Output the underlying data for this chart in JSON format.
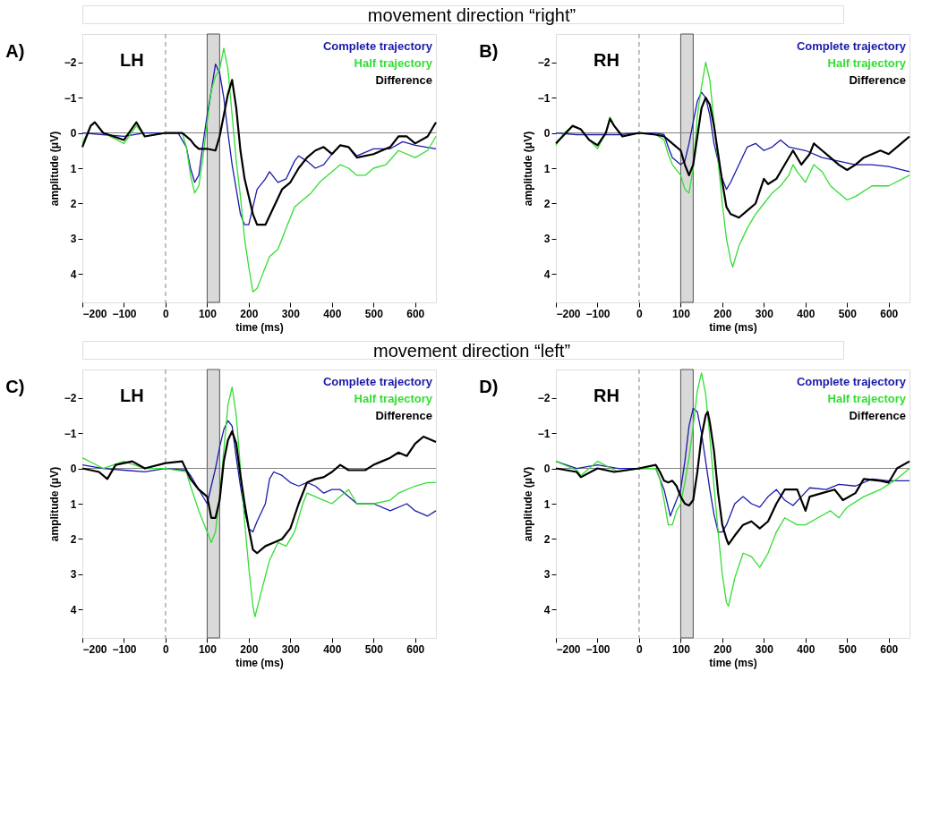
{
  "chart_data": [
    {
      "type": "line",
      "title": "A)",
      "subtitle": "movement direction “right”",
      "annotations": [
        "LH"
      ],
      "xlabel": "time (ms)",
      "ylabel": "amplitude (μV)",
      "xlim": [
        -200,
        650
      ],
      "xticks": [
        -200,
        -100,
        0,
        100,
        200,
        300,
        400,
        500,
        600
      ],
      "ylim": [
        4.8,
        -2.8
      ],
      "yticks": [
        -2,
        -1,
        0,
        1,
        2,
        3,
        4
      ],
      "legend": "top right",
      "grid": false,
      "ref_lines": [
        {
          "axis": "x",
          "value": 0,
          "color": "#808080",
          "line_style": "dashed"
        },
        {
          "axis": "y",
          "value": 0,
          "color": "#808080",
          "line_style": "solid"
        }
      ],
      "bands": [
        {
          "axis": "x",
          "from": 100,
          "to": 130,
          "color": "#d9d9d9"
        }
      ],
      "series": [
        {
          "name": "Complete trajectory",
          "color": "#1a1aaa",
          "x": [
            -200,
            -150,
            -100,
            -50,
            0,
            30,
            50,
            60,
            70,
            80,
            90,
            100,
            110,
            120,
            130,
            140,
            150,
            160,
            170,
            180,
            190,
            200,
            210,
            220,
            240,
            250,
            270,
            290,
            310,
            320,
            340,
            360,
            380,
            400,
            420,
            440,
            460,
            500,
            540,
            570,
            600,
            650
          ],
          "values": [
            0,
            0.05,
            0.1,
            0,
            0,
            0,
            0.4,
            1,
            1.4,
            1.2,
            0.3,
            -0.5,
            -1.2,
            -1.95,
            -1.7,
            -1,
            0,
            0.9,
            1.6,
            2.3,
            2.6,
            2.6,
            2.1,
            1.6,
            1.3,
            1.1,
            1.4,
            1.3,
            0.8,
            0.65,
            0.8,
            1.0,
            0.9,
            0.6,
            0.35,
            0.4,
            0.65,
            0.45,
            0.45,
            0.25,
            0.35,
            0.45
          ]
        },
        {
          "name": "Half trajectory",
          "color": "#33dd33",
          "x": [
            -200,
            -180,
            -170,
            -150,
            -100,
            -70,
            -50,
            0,
            40,
            50,
            60,
            70,
            80,
            90,
            100,
            110,
            120,
            130,
            140,
            150,
            160,
            170,
            180,
            190,
            200,
            210,
            220,
            230,
            250,
            270,
            290,
            310,
            330,
            350,
            370,
            400,
            420,
            440,
            460,
            480,
            500,
            530,
            560,
            600,
            630,
            650
          ],
          "values": [
            0.3,
            -0.2,
            -0.3,
            0,
            0.3,
            -0.2,
            0.1,
            0,
            0,
            0.4,
            1.2,
            1.7,
            1.5,
            0.7,
            -0.3,
            -1.2,
            -1.6,
            -1.8,
            -2.4,
            -1.8,
            -0.5,
            0.8,
            1.8,
            3,
            3.8,
            4.5,
            4.4,
            4.1,
            3.5,
            3.3,
            2.7,
            2.1,
            1.9,
            1.7,
            1.4,
            1.1,
            0.9,
            1.0,
            1.2,
            1.2,
            1.0,
            0.9,
            0.5,
            0.7,
            0.5,
            0.1
          ]
        },
        {
          "name": "Difference",
          "color": "#000000",
          "x": [
            -200,
            -180,
            -170,
            -150,
            -100,
            -70,
            -50,
            0,
            40,
            60,
            70,
            80,
            100,
            120,
            130,
            140,
            150,
            160,
            170,
            180,
            190,
            200,
            210,
            220,
            240,
            260,
            280,
            300,
            320,
            340,
            360,
            380,
            400,
            420,
            440,
            460,
            500,
            540,
            560,
            580,
            600,
            630,
            650
          ],
          "values": [
            0.4,
            -0.2,
            -0.3,
            0,
            0.2,
            -0.3,
            0.1,
            0,
            0,
            0.2,
            0.35,
            0.45,
            0.45,
            0.5,
            0.1,
            -0.5,
            -1.1,
            -1.5,
            -0.7,
            0.5,
            1.3,
            1.8,
            2.3,
            2.6,
            2.6,
            2.1,
            1.6,
            1.4,
            1.0,
            0.7,
            0.5,
            0.4,
            0.6,
            0.35,
            0.4,
            0.7,
            0.6,
            0.4,
            0.1,
            0.1,
            0.3,
            0.1,
            -0.3
          ]
        }
      ]
    },
    {
      "type": "line",
      "title": "B)",
      "annotations": [
        "RH"
      ],
      "xlabel": "time (ms)",
      "ylabel": "amplitude (μV)",
      "xlim": [
        -200,
        650
      ],
      "xticks": [
        -200,
        -100,
        0,
        100,
        200,
        300,
        400,
        500,
        600
      ],
      "ylim": [
        4.8,
        -2.8
      ],
      "yticks": [
        -2,
        -1,
        0,
        1,
        2,
        3,
        4
      ],
      "legend": "top right",
      "grid": false,
      "ref_lines": [
        {
          "axis": "x",
          "value": 0,
          "color": "#808080",
          "line_style": "dashed"
        },
        {
          "axis": "y",
          "value": 0,
          "color": "#808080",
          "line_style": "solid"
        }
      ],
      "bands": [
        {
          "axis": "x",
          "from": 100,
          "to": 130,
          "color": "#d9d9d9"
        }
      ],
      "series": [
        {
          "name": "Complete trajectory",
          "color": "#1a1aaa",
          "x": [
            -200,
            -150,
            -100,
            -50,
            0,
            40,
            60,
            70,
            80,
            100,
            110,
            120,
            130,
            140,
            150,
            160,
            170,
            180,
            190,
            200,
            210,
            220,
            240,
            260,
            280,
            300,
            320,
            340,
            360,
            400,
            440,
            480,
            520,
            560,
            600,
            650
          ],
          "values": [
            0,
            0.05,
            0.05,
            0.05,
            0,
            0,
            0.05,
            0.4,
            0.7,
            0.9,
            0.8,
            0.3,
            -0.3,
            -0.9,
            -1.15,
            -1.0,
            -0.5,
            0.3,
            0.8,
            1.3,
            1.6,
            1.4,
            0.9,
            0.4,
            0.3,
            0.5,
            0.4,
            0.2,
            0.4,
            0.5,
            0.7,
            0.8,
            0.9,
            0.9,
            0.95,
            1.1
          ]
        },
        {
          "name": "Half trajectory",
          "color": "#33dd33",
          "x": [
            -200,
            -180,
            -160,
            -140,
            -120,
            -100,
            -80,
            -70,
            -60,
            -40,
            0,
            40,
            60,
            70,
            80,
            100,
            110,
            120,
            130,
            140,
            150,
            160,
            170,
            180,
            190,
            200,
            210,
            220,
            225,
            240,
            260,
            280,
            300,
            320,
            340,
            360,
            370,
            380,
            400,
            420,
            440,
            460,
            480,
            500,
            520,
            560,
            600,
            650
          ],
          "values": [
            0.35,
            0,
            -0.2,
            -0.1,
            0.2,
            0.45,
            0,
            -0.45,
            -0.2,
            0.1,
            0,
            0.05,
            0.2,
            0.6,
            0.9,
            1.2,
            1.6,
            1.7,
            1.0,
            -0.5,
            -1.3,
            -2.0,
            -1.5,
            -0.3,
            0.8,
            2.0,
            3.0,
            3.6,
            3.8,
            3.2,
            2.7,
            2.3,
            2.0,
            1.7,
            1.5,
            1.2,
            0.9,
            1.1,
            1.4,
            0.9,
            1.1,
            1.5,
            1.7,
            1.9,
            1.8,
            1.5,
            1.5,
            1.2
          ]
        },
        {
          "name": "Difference",
          "color": "#000000",
          "x": [
            -200,
            -180,
            -160,
            -140,
            -120,
            -100,
            -80,
            -70,
            -60,
            -40,
            0,
            40,
            60,
            80,
            100,
            110,
            120,
            130,
            140,
            150,
            160,
            170,
            180,
            190,
            200,
            210,
            220,
            240,
            260,
            280,
            300,
            310,
            330,
            350,
            370,
            390,
            410,
            420,
            440,
            460,
            480,
            500,
            520,
            540,
            580,
            600,
            630,
            650
          ],
          "values": [
            0.3,
            0.05,
            -0.2,
            -0.1,
            0.2,
            0.35,
            0,
            -0.4,
            -0.2,
            0.1,
            0,
            0.05,
            0.1,
            0.3,
            0.5,
            0.9,
            1.2,
            0.9,
            0.1,
            -0.7,
            -1.0,
            -0.8,
            -0.2,
            0.6,
            1.4,
            2.1,
            2.3,
            2.4,
            2.2,
            2.0,
            1.3,
            1.45,
            1.3,
            0.9,
            0.5,
            0.9,
            0.6,
            0.3,
            0.5,
            0.7,
            0.9,
            1.05,
            0.9,
            0.7,
            0.5,
            0.6,
            0.3,
            0.1
          ]
        }
      ]
    },
    {
      "type": "line",
      "title": "C)",
      "subtitle": "movement direction “left”",
      "annotations": [
        "LH"
      ],
      "xlabel": "time (ms)",
      "ylabel": "amplitude (μV)",
      "xlim": [
        -200,
        650
      ],
      "xticks": [
        -200,
        -100,
        0,
        100,
        200,
        300,
        400,
        500,
        600
      ],
      "ylim": [
        4.8,
        -2.8
      ],
      "yticks": [
        -2,
        -1,
        0,
        1,
        2,
        3,
        4
      ],
      "legend": "top right",
      "grid": false,
      "ref_lines": [
        {
          "axis": "x",
          "value": 0,
          "color": "#808080",
          "line_style": "dashed"
        },
        {
          "axis": "y",
          "value": 0,
          "color": "#808080",
          "line_style": "solid"
        }
      ],
      "bands": [
        {
          "axis": "x",
          "from": 100,
          "to": 130,
          "color": "#d9d9d9"
        }
      ],
      "series": [
        {
          "name": "Complete trajectory",
          "color": "#1a1aaa",
          "x": [
            -200,
            -150,
            -100,
            -50,
            0,
            50,
            60,
            80,
            100,
            110,
            120,
            130,
            140,
            150,
            160,
            170,
            180,
            190,
            200,
            210,
            220,
            240,
            250,
            260,
            280,
            300,
            320,
            340,
            360,
            380,
            400,
            420,
            440,
            460,
            500,
            540,
            580,
            600,
            630,
            650
          ],
          "values": [
            -0.1,
            0,
            0.05,
            0.1,
            0,
            0.05,
            0.2,
            0.6,
            1.0,
            0.5,
            0,
            -0.6,
            -1.1,
            -1.35,
            -1.2,
            -0.3,
            0.5,
            1.2,
            1.7,
            1.8,
            1.5,
            1.0,
            0.3,
            0.1,
            0.2,
            0.4,
            0.5,
            0.4,
            0.5,
            0.7,
            0.6,
            0.6,
            0.8,
            1.0,
            1.0,
            1.2,
            1.0,
            1.2,
            1.35,
            1.2
          ]
        },
        {
          "name": "Half trajectory",
          "color": "#33dd33",
          "x": [
            -200,
            -150,
            -100,
            -50,
            0,
            50,
            60,
            80,
            100,
            110,
            120,
            130,
            140,
            150,
            160,
            170,
            180,
            190,
            200,
            210,
            215,
            230,
            250,
            270,
            290,
            310,
            330,
            340,
            360,
            380,
            400,
            420,
            440,
            460,
            500,
            540,
            560,
            600,
            630,
            650
          ],
          "values": [
            -0.3,
            0,
            -0.2,
            0,
            0,
            0.1,
            0.5,
            1.2,
            1.8,
            2.1,
            1.8,
            0.8,
            -0.5,
            -1.8,
            -2.3,
            -1.5,
            0,
            1.5,
            2.8,
            3.9,
            4.2,
            3.5,
            2.6,
            2.1,
            2.2,
            1.8,
            1.0,
            0.7,
            0.8,
            0.9,
            1.0,
            0.8,
            0.6,
            1.0,
            1.0,
            0.9,
            0.7,
            0.5,
            0.4,
            0.4
          ]
        },
        {
          "name": "Difference",
          "color": "#000000",
          "x": [
            -200,
            -160,
            -140,
            -120,
            -80,
            -50,
            0,
            40,
            60,
            80,
            100,
            110,
            120,
            130,
            140,
            150,
            160,
            170,
            180,
            190,
            200,
            210,
            220,
            240,
            260,
            280,
            300,
            320,
            340,
            360,
            380,
            400,
            420,
            440,
            460,
            480,
            500,
            520,
            540,
            560,
            580,
            600,
            620,
            650
          ],
          "values": [
            0,
            0.1,
            0.3,
            -0.1,
            -0.2,
            0,
            -0.15,
            -0.2,
            0.3,
            0.6,
            0.8,
            1.4,
            1.4,
            0.9,
            -0.2,
            -0.8,
            -1.05,
            -0.7,
            0.2,
            1.0,
            1.7,
            2.3,
            2.4,
            2.2,
            2.1,
            2.0,
            1.7,
            1.0,
            0.4,
            0.3,
            0.25,
            0.1,
            -0.1,
            0.05,
            0.05,
            0.05,
            -0.1,
            -0.2,
            -0.3,
            -0.45,
            -0.35,
            -0.7,
            -0.9,
            -0.75
          ]
        }
      ]
    },
    {
      "type": "line",
      "title": "D)",
      "annotations": [
        "RH"
      ],
      "xlabel": "time (ms)",
      "ylabel": "amplitude (μV)",
      "xlim": [
        -200,
        650
      ],
      "xticks": [
        -200,
        -100,
        0,
        100,
        200,
        300,
        400,
        500,
        600
      ],
      "ylim": [
        4.8,
        -2.8
      ],
      "yticks": [
        -2,
        -1,
        0,
        1,
        2,
        3,
        4
      ],
      "legend": "top right",
      "grid": false,
      "ref_lines": [
        {
          "axis": "x",
          "value": 0,
          "color": "#808080",
          "line_style": "dashed"
        },
        {
          "axis": "y",
          "value": 0,
          "color": "#808080",
          "line_style": "solid"
        }
      ],
      "bands": [
        {
          "axis": "x",
          "from": 100,
          "to": 130,
          "color": "#d9d9d9"
        }
      ],
      "series": [
        {
          "name": "Complete trajectory",
          "color": "#1a1aaa",
          "x": [
            -200,
            -150,
            -100,
            -50,
            0,
            40,
            50,
            60,
            70,
            75,
            90,
            100,
            110,
            120,
            130,
            140,
            150,
            160,
            170,
            180,
            190,
            200,
            210,
            230,
            250,
            270,
            290,
            310,
            330,
            350,
            370,
            390,
            410,
            450,
            480,
            520,
            560,
            600,
            650
          ],
          "values": [
            -0.2,
            0,
            -0.1,
            0,
            0,
            0,
            0.3,
            0.6,
            1.1,
            1.35,
            0.9,
            0.6,
            -0.2,
            -1.2,
            -1.7,
            -1.6,
            -1.0,
            -0.2,
            0.6,
            1.3,
            1.8,
            1.8,
            1.6,
            1.0,
            0.8,
            1.0,
            1.1,
            0.8,
            0.6,
            0.9,
            1.05,
            0.8,
            0.55,
            0.6,
            0.45,
            0.5,
            0.3,
            0.35,
            0.35
          ]
        },
        {
          "name": "Half trajectory",
          "color": "#33dd33",
          "x": [
            -200,
            -150,
            -140,
            -100,
            -50,
            0,
            40,
            50,
            60,
            70,
            80,
            90,
            100,
            110,
            120,
            130,
            140,
            150,
            160,
            170,
            180,
            190,
            200,
            210,
            215,
            230,
            250,
            270,
            290,
            310,
            330,
            350,
            380,
            400,
            430,
            460,
            480,
            500,
            540,
            580,
            620,
            650
          ],
          "values": [
            -0.2,
            0.05,
            0.2,
            -0.2,
            0.1,
            0,
            0,
            0.3,
            0.9,
            1.6,
            1.6,
            1.2,
            1.0,
            0.4,
            -0.3,
            -1.2,
            -2.2,
            -2.7,
            -2.1,
            -0.9,
            0.5,
            1.8,
            3.0,
            3.8,
            3.9,
            3.1,
            2.4,
            2.5,
            2.8,
            2.4,
            1.8,
            1.4,
            1.6,
            1.6,
            1.4,
            1.2,
            1.4,
            1.1,
            0.8,
            0.6,
            0.3,
            0.0
          ]
        },
        {
          "name": "Difference",
          "color": "#000000",
          "x": [
            -200,
            -150,
            -140,
            -100,
            -60,
            0,
            40,
            50,
            60,
            70,
            80,
            90,
            100,
            110,
            120,
            130,
            140,
            150,
            160,
            165,
            170,
            180,
            190,
            200,
            210,
            215,
            230,
            250,
            270,
            290,
            310,
            330,
            350,
            380,
            400,
            410,
            440,
            470,
            490,
            520,
            540,
            580,
            600,
            620,
            650
          ],
          "values": [
            0,
            0.1,
            0.25,
            0,
            0.1,
            0,
            -0.1,
            0.1,
            0.35,
            0.4,
            0.35,
            0.5,
            0.8,
            1.0,
            1.05,
            0.9,
            0.1,
            -0.9,
            -1.5,
            -1.6,
            -1.3,
            -0.5,
            0.7,
            1.6,
            2.0,
            2.15,
            1.9,
            1.6,
            1.5,
            1.7,
            1.5,
            1.0,
            0.6,
            0.6,
            1.2,
            0.8,
            0.7,
            0.6,
            0.9,
            0.7,
            0.3,
            0.35,
            0.4,
            0.0,
            -0.2
          ]
        }
      ]
    }
  ]
}
